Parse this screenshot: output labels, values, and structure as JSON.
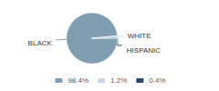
{
  "chart_data": {
    "type": "pie",
    "categories": [
      "98.4%",
      "1.2%",
      "0.4%"
    ],
    "values": [
      98.4,
      1.2,
      0.4
    ],
    "colors": [
      "#7f9eb2",
      "#c8d8e4",
      "#2b4a6b"
    ],
    "annotations": [
      "BLACK",
      "WHITE",
      "HISPANIC"
    ],
    "legend": "bottom"
  }
}
